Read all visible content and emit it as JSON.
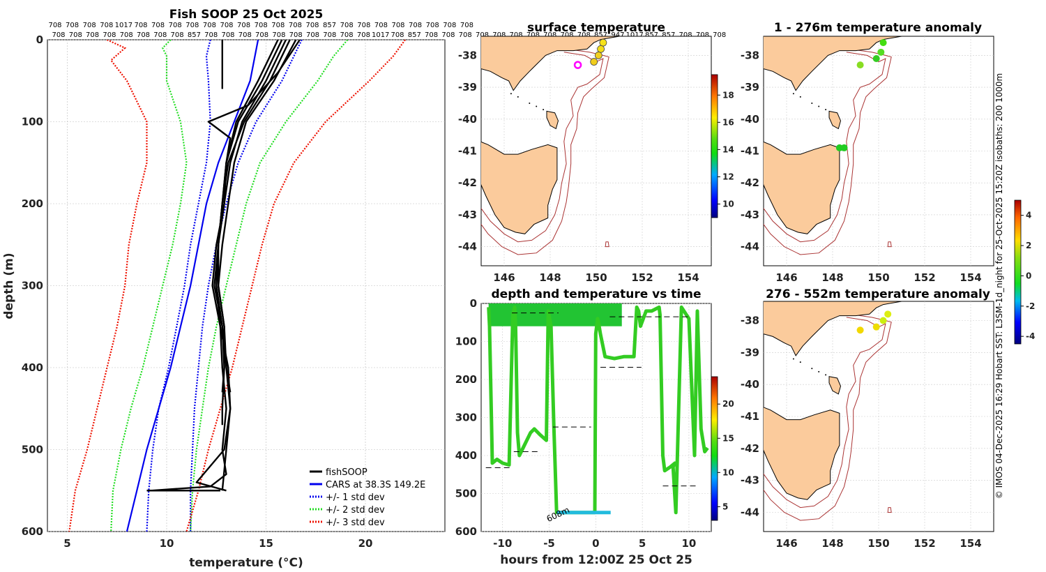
{
  "chart_data": [
    {
      "type": "line",
      "id": "profile",
      "title": "Fish SOOP 25 Oct 2025",
      "xlabel": "temperature (°C)",
      "ylabel": "depth (m)",
      "xlim": [
        4,
        24
      ],
      "ylim": [
        0,
        600
      ],
      "xticks": [
        5,
        10,
        15,
        20
      ],
      "yticks": [
        0,
        100,
        200,
        300,
        400,
        500,
        600
      ],
      "station_row_top": [
        "708",
        "708",
        "708",
        "708",
        "1017",
        "708",
        "708",
        "708",
        "708",
        "708",
        "708",
        "708",
        "708",
        "708",
        "708",
        "708",
        "857",
        "708",
        "708",
        "708",
        "708",
        "708",
        "708",
        "708",
        "708"
      ],
      "station_row_bottom": [
        "708",
        "708",
        "708",
        "708",
        "708",
        "708",
        "708",
        "708",
        "857",
        "708",
        "708",
        "708",
        "708",
        "708",
        "708",
        "708",
        "708",
        "708",
        "708",
        "1017",
        "708",
        "857",
        "708",
        "708",
        "708",
        "708",
        "708",
        "708",
        "708",
        "708",
        "708",
        "708",
        "857",
        "947",
        "1017",
        "857",
        "857",
        "708",
        "708",
        "708"
      ],
      "legend": [
        "fishSOOP",
        "CARS at 38.3S 149.2E",
        "+/- 1 std dev",
        "+/- 2 std dev",
        "+/- 3 std dev"
      ],
      "colors": {
        "fishsoop": "#000000",
        "cars": "#0000ee",
        "std1": "#0000ee",
        "std2": "#22dd22",
        "std3": "#ee1100"
      },
      "series": [
        {
          "name": "CARS at 38.3S 149.2E",
          "depth": [
            0,
            50,
            100,
            150,
            200,
            250,
            300,
            350,
            400,
            450,
            500,
            550,
            600
          ],
          "temp": [
            14.6,
            14.2,
            13.4,
            12.6,
            12.0,
            11.6,
            11.2,
            10.7,
            10.2,
            9.6,
            9.0,
            8.5,
            8.0
          ]
        },
        {
          "name": "-1 std dev",
          "depth": [
            0,
            20,
            50,
            100,
            150,
            200,
            250,
            300,
            350,
            400,
            450,
            500,
            550,
            600
          ],
          "temp": [
            12.2,
            12.0,
            12.1,
            12.2,
            12.0,
            11.6,
            11.2,
            10.9,
            10.5,
            10.1,
            9.6,
            9.3,
            9.1,
            9.0
          ]
        },
        {
          "name": "+1 std dev",
          "depth": [
            0,
            50,
            100,
            150,
            200,
            250,
            300,
            350,
            400,
            450,
            500,
            550,
            600
          ],
          "temp": [
            16.8,
            15.8,
            14.5,
            13.6,
            13.0,
            12.5,
            12.1,
            11.8,
            11.6,
            11.4,
            11.3,
            11.2,
            11.2
          ]
        },
        {
          "name": "-2 std dev",
          "depth": [
            0,
            10,
            20,
            50,
            100,
            150,
            200,
            250,
            300,
            350,
            400,
            450,
            500,
            550,
            600
          ],
          "temp": [
            10.2,
            9.8,
            10.0,
            10.0,
            10.7,
            11.0,
            10.7,
            10.3,
            9.8,
            9.3,
            8.8,
            8.2,
            7.7,
            7.3,
            7.2
          ]
        },
        {
          "name": "+2 std dev",
          "depth": [
            0,
            20,
            50,
            100,
            150,
            200,
            250,
            300,
            350,
            400,
            450,
            500,
            550,
            600
          ],
          "temp": [
            19.1,
            18.4,
            17.6,
            16.0,
            14.7,
            14.0,
            13.5,
            13.0,
            12.5,
            12.1,
            11.8,
            11.5,
            11.3,
            11.2
          ]
        },
        {
          "name": "-3 std dev",
          "depth": [
            0,
            10,
            25,
            50,
            100,
            150,
            200,
            250,
            300,
            350,
            400,
            450,
            500,
            550,
            600
          ],
          "temp": [
            7.0,
            7.9,
            7.2,
            8.0,
            9.0,
            9.0,
            8.5,
            8.1,
            7.9,
            7.5,
            7.0,
            6.5,
            6.0,
            5.4,
            5.1
          ]
        },
        {
          "name": "+3 std dev",
          "depth": [
            0,
            20,
            50,
            100,
            150,
            200,
            250,
            300,
            350,
            400,
            450,
            500,
            550,
            600
          ],
          "temp": [
            22.0,
            21.4,
            20.2,
            18.0,
            16.4,
            15.4,
            14.8,
            14.3,
            13.8,
            13.3,
            12.7,
            12.1,
            11.6,
            11.0
          ]
        },
        {
          "name": "fishSOOP",
          "profiles": [
            {
              "depth": [
                0,
                30,
                60
              ],
              "temp": [
                12.8,
                12.8,
                12.8
              ]
            },
            {
              "depth": [
                0,
                50,
                100,
                150,
                200,
                250,
                300,
                350,
                400,
                430
              ],
              "temp": [
                16.2,
                15.2,
                13.9,
                13.1,
                12.8,
                12.6,
                12.4,
                12.8,
                12.9,
                12.8
              ]
            },
            {
              "depth": [
                0,
                50,
                100,
                150,
                200,
                250,
                300,
                350,
                400,
                450,
                470
              ],
              "temp": [
                16.5,
                15.4,
                14.0,
                13.4,
                13.1,
                12.8,
                12.6,
                12.9,
                12.9,
                12.8,
                12.8
              ]
            },
            {
              "depth": [
                0,
                50,
                100,
                150,
                200,
                250,
                300,
                350,
                400,
                450,
                500,
                530,
                545,
                550
              ],
              "temp": [
                15.8,
                14.8,
                13.6,
                13.0,
                12.8,
                12.6,
                12.5,
                12.7,
                12.8,
                13.0,
                12.8,
                13.0,
                12.2,
                9.2
              ]
            },
            {
              "depth": [
                0,
                40,
                80,
                100,
                120,
                150,
                200,
                250,
                300,
                350,
                400,
                430
              ],
              "temp": [
                16.7,
                15.6,
                14.1,
                12.1,
                13.2,
                13.0,
                12.9,
                12.6,
                12.6,
                12.9,
                13.0,
                13.2
              ]
            },
            {
              "depth": [
                0,
                50,
                100,
                150,
                200,
                250,
                300,
                350,
                400,
                450,
                500,
                540,
                550
              ],
              "temp": [
                15.6,
                14.6,
                13.5,
                13.0,
                12.8,
                12.6,
                12.5,
                12.8,
                13.0,
                13.2,
                12.9,
                11.5,
                13.0
              ]
            },
            {
              "depth": [
                0,
                50,
                100,
                150,
                200,
                250,
                300,
                350,
                400,
                450,
                500,
                550
              ],
              "temp": [
                16.0,
                15.0,
                13.8,
                13.2,
                12.9,
                12.5,
                12.3,
                12.7,
                13.1,
                13.2,
                13.0,
                12.8
              ]
            }
          ]
        }
      ]
    },
    {
      "type": "map",
      "id": "surface-temperature",
      "title": "surface temperature",
      "xlim": [
        145,
        155
      ],
      "ylim": [
        -44.6,
        -37.4
      ],
      "xticks": [
        146,
        148,
        150,
        152,
        154
      ],
      "yticks": [
        -38,
        -39,
        -40,
        -41,
        -42,
        -43,
        -44
      ],
      "colorbar": {
        "ticks": [
          10,
          12,
          14,
          16,
          18
        ],
        "range": [
          9,
          19.5
        ]
      },
      "points": [
        {
          "lon": 150.3,
          "lat": -37.6,
          "color": "#f6e21a"
        },
        {
          "lon": 150.2,
          "lat": -37.8,
          "color": "#f2dc18"
        },
        {
          "lon": 150.1,
          "lat": -38.0,
          "color": "#f2d020"
        },
        {
          "lon": 149.9,
          "lat": -38.2,
          "color": "#f0cd1c"
        },
        {
          "lon": 149.2,
          "lat": -38.3,
          "color": "#ff00ff",
          "ring": true
        }
      ]
    },
    {
      "type": "map",
      "id": "anomaly-1-276",
      "title": "1 - 276m temperature anomaly",
      "xlim": [
        145,
        155
      ],
      "ylim": [
        -44.6,
        -37.4
      ],
      "xticks": [
        146,
        148,
        150,
        152,
        154
      ],
      "yticks": [
        -38,
        -39,
        -40,
        -41,
        -42,
        -43,
        -44
      ],
      "points": [
        {
          "lon": 150.2,
          "lat": -37.6,
          "color": "#44dd11"
        },
        {
          "lon": 150.1,
          "lat": -37.9,
          "color": "#55dd22"
        },
        {
          "lon": 149.9,
          "lat": -38.1,
          "color": "#33cc22"
        },
        {
          "lon": 149.2,
          "lat": -38.3,
          "color": "#88dd22"
        },
        {
          "lon": 148.3,
          "lat": -40.9,
          "color": "#22cc22"
        },
        {
          "lon": 148.5,
          "lat": -40.9,
          "color": "#22cc22"
        }
      ]
    },
    {
      "type": "map",
      "id": "anomaly-276-552",
      "title": "276 - 552m temperature anomaly",
      "xlim": [
        145,
        155
      ],
      "ylim": [
        -44.6,
        -37.4
      ],
      "xticks": [
        146,
        148,
        150,
        152,
        154
      ],
      "yticks": [
        -38,
        -39,
        -40,
        -41,
        -42,
        -43,
        -44
      ],
      "colorbar": {
        "ticks": [
          -4,
          -2,
          0,
          2,
          4
        ],
        "range": [
          -4.5,
          5
        ]
      },
      "points": [
        {
          "lon": 150.4,
          "lat": -37.8,
          "color": "#ddee11"
        },
        {
          "lon": 150.2,
          "lat": -38.0,
          "color": "#ccee11"
        },
        {
          "lon": 149.9,
          "lat": -38.2,
          "color": "#eedd00"
        },
        {
          "lon": 149.2,
          "lat": -38.3,
          "color": "#f2d800"
        }
      ]
    },
    {
      "type": "line",
      "id": "depth-vs-time",
      "title": "depth and temperature vs time",
      "xlabel": "hours from 12:00Z 25 Oct 25",
      "xlim": [
        -12.3,
        12.4
      ],
      "ylim": [
        0,
        600
      ],
      "xticks": [
        -10,
        -5,
        0,
        5,
        10
      ],
      "yticks": [
        0,
        100,
        200,
        300,
        400,
        500,
        600
      ],
      "colorbar": {
        "ticks": [
          5,
          10,
          15,
          20
        ],
        "range": [
          3,
          24
        ]
      },
      "annotation": "608m",
      "annotation_at": [
        -5.1,
        575
      ],
      "track": {
        "hours": [
          -11.5,
          -11.4,
          -11.2,
          -11.1,
          -10.6,
          -10.0,
          -9.3,
          -8.9,
          -8.7,
          -8.6,
          -8.4,
          -8.2,
          -7.6,
          -7.0,
          -6.6,
          -6.0,
          -5.3,
          -5.1,
          -4.8,
          -4.5,
          -4.2,
          -3.5,
          -3.0,
          -2.2,
          -1.6,
          -0.1,
          0.0,
          0.2,
          0.3,
          0.5,
          1.0,
          2.0,
          3.0,
          4.1,
          4.4,
          4.6,
          4.8,
          5.4,
          6.0,
          6.8,
          6.9,
          7.2,
          7.4,
          8.0,
          8.5,
          8.3,
          8.6,
          9.2,
          10.0,
          10.6,
          10.9,
          11.3,
          11.7,
          12.0
        ],
        "depth": [
          10,
          60,
          300,
          420,
          410,
          420,
          425,
          30,
          10,
          60,
          340,
          400,
          370,
          340,
          330,
          345,
          360,
          20,
          60,
          320,
          550,
          550,
          550,
          550,
          550,
          550,
          80,
          40,
          50,
          80,
          140,
          145,
          140,
          140,
          10,
          20,
          60,
          20,
          20,
          10,
          30,
          400,
          440,
          430,
          420,
          430,
          550,
          10,
          40,
          400,
          20,
          330,
          390,
          380
        ]
      },
      "reference_depths": [
        {
          "h0": -11.8,
          "h1": -9.0,
          "depth": 432
        },
        {
          "h0": -8.8,
          "h1": -6.0,
          "depth": 390
        },
        {
          "h0": -4.6,
          "h1": -0.5,
          "depth": 325
        },
        {
          "h0": 0.5,
          "h1": 4.9,
          "depth": 168
        },
        {
          "h0": 7.2,
          "h1": 11.0,
          "depth": 480
        },
        {
          "h0": -9.0,
          "h1": -4.0,
          "depth": 25
        },
        {
          "h0": 1.5,
          "h1": 10.0,
          "depth": 35
        }
      ]
    }
  ],
  "side_caption": "© IMOS 04-Dec-2025 16:29 Hobart SST: L3SM-1d_night for 25-Oct-2025 15:20Z isobaths: 200  1000m"
}
